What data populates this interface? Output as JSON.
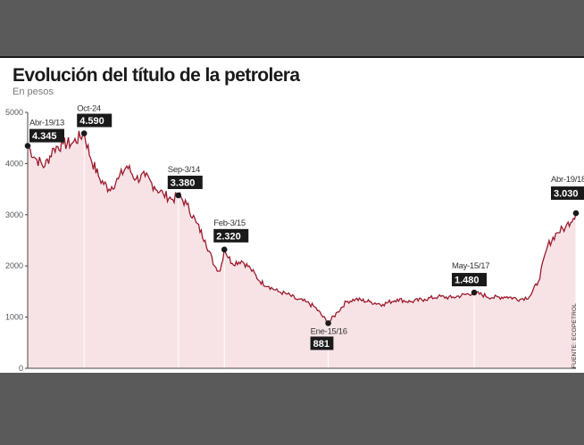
{
  "header": {
    "title": "Evolución del título de la petrolera",
    "subtitle": "En pesos"
  },
  "source": "FUENTE: ECOPETROL",
  "colors": {
    "line": "#9b1b2e",
    "fill": "#f7e3e6",
    "frame": "#5a5a5a",
    "label_bg": "#1a1a1a"
  },
  "chart_data": {
    "type": "area",
    "title": "Evolución del título de la petrolera",
    "ylabel": "En pesos",
    "ylim": [
      0,
      5000
    ],
    "yticks": [
      0,
      1000,
      2000,
      3000,
      4000,
      5000
    ],
    "grid": false,
    "x": [
      "2013-04-19",
      "2013-05-15",
      "2013-06-15",
      "2013-07-15",
      "2013-08-15",
      "2013-09-15",
      "2013-10-24",
      "2013-11-15",
      "2013-12-15",
      "2014-01-15",
      "2014-02-15",
      "2014-03-15",
      "2014-04-15",
      "2014-05-15",
      "2014-06-15",
      "2014-07-15",
      "2014-08-15",
      "2014-09-03",
      "2014-10-01",
      "2014-11-01",
      "2014-12-01",
      "2015-01-01",
      "2015-01-20",
      "2015-02-03",
      "2015-03-01",
      "2015-04-01",
      "2015-05-01",
      "2015-06-01",
      "2015-07-01",
      "2015-08-01",
      "2015-09-01",
      "2015-10-01",
      "2015-11-01",
      "2015-12-01",
      "2016-01-15",
      "2016-02-15",
      "2016-03-15",
      "2016-04-15",
      "2016-06-01",
      "2016-07-15",
      "2016-09-01",
      "2016-10-15",
      "2016-12-01",
      "2017-01-15",
      "2017-03-01",
      "2017-05-15",
      "2017-07-15",
      "2017-09-01",
      "2017-10-15",
      "2017-11-15",
      "2017-12-15",
      "2018-01-15",
      "2018-02-15",
      "2018-03-15",
      "2018-04-19"
    ],
    "series": [
      {
        "values": [
          4345,
          4100,
          3950,
          4300,
          4380,
          4400,
          4590,
          4100,
          3700,
          3500,
          3700,
          3950,
          3700,
          3750,
          3550,
          3400,
          3300,
          3380,
          3200,
          2850,
          2500,
          2000,
          1900,
          2320,
          2050,
          2100,
          1950,
          1700,
          1600,
          1500,
          1450,
          1350,
          1300,
          1200,
          881,
          1100,
          1300,
          1350,
          1300,
          1250,
          1350,
          1300,
          1350,
          1400,
          1380,
          1480,
          1380,
          1400,
          1350,
          1400,
          1700,
          2400,
          2650,
          2750,
          3030
        ]
      }
    ],
    "annotations": [
      {
        "date": "Abr-19/13",
        "value": "4.345",
        "x": "2013-04-19",
        "y": 4345
      },
      {
        "date": "Oct-24",
        "value": "4.590",
        "x": "2013-10-24",
        "y": 4590
      },
      {
        "date": "Sep-3/14",
        "value": "3.380",
        "x": "2014-09-03",
        "y": 3380
      },
      {
        "date": "Feb-3/15",
        "value": "2.320",
        "x": "2015-02-03",
        "y": 2320
      },
      {
        "date": "Ene-15/16",
        "value": "881",
        "x": "2016-01-15",
        "y": 881
      },
      {
        "date": "May-15/17",
        "value": "1.480",
        "x": "2017-05-15",
        "y": 1480
      },
      {
        "date": "Abr-19/18",
        "value": "3.030",
        "x": "2018-04-19",
        "y": 3030
      }
    ]
  }
}
